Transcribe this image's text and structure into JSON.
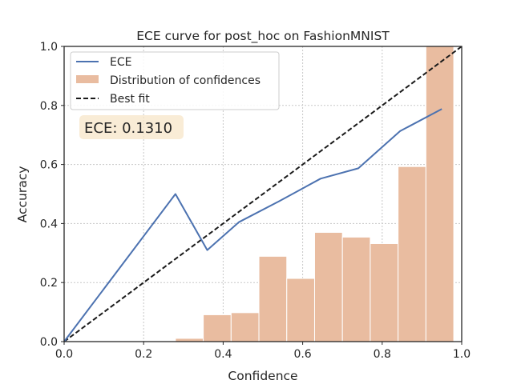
{
  "chart_data": {
    "type": "bar+line",
    "title": "ECE curve for post_hoc on FashionMNIST",
    "xlabel": "Confidence",
    "ylabel": "Accuracy",
    "xlim": [
      0,
      1
    ],
    "ylim": [
      0,
      1
    ],
    "xticks": [
      "0.0",
      "0.2",
      "0.4",
      "0.6",
      "0.8",
      "1.0"
    ],
    "yticks": [
      "0.0",
      "0.2",
      "0.4",
      "0.6",
      "0.8",
      "1.0"
    ],
    "grid": true,
    "legend_position": "upper-left",
    "legend": [
      "ECE",
      "Distribution of confidences",
      "Best fit"
    ],
    "annotation": "ECE: 0.1310",
    "ece_line": {
      "name": "ECE",
      "color": "#4c72b0",
      "x": [
        0.0,
        0.28,
        0.36,
        0.44,
        0.54,
        0.645,
        0.74,
        0.845,
        0.95
      ],
      "y": [
        0.0,
        0.5,
        0.31,
        0.405,
        0.475,
        0.552,
        0.587,
        0.713,
        0.788
      ]
    },
    "histogram": {
      "name": "Distribution of confidences",
      "color": "#e9bca0",
      "bins": [
        {
          "x0": 0.28,
          "x1": 0.35,
          "value": 0.011
        },
        {
          "x0": 0.35,
          "x1": 0.42,
          "value": 0.091
        },
        {
          "x0": 0.42,
          "x1": 0.49,
          "value": 0.098
        },
        {
          "x0": 0.49,
          "x1": 0.56,
          "value": 0.289
        },
        {
          "x0": 0.56,
          "x1": 0.63,
          "value": 0.214
        },
        {
          "x0": 0.63,
          "x1": 0.7,
          "value": 0.37
        },
        {
          "x0": 0.7,
          "x1": 0.77,
          "value": 0.354
        },
        {
          "x0": 0.77,
          "x1": 0.84,
          "value": 0.332
        },
        {
          "x0": 0.84,
          "x1": 0.91,
          "value": 0.593
        },
        {
          "x0": 0.91,
          "x1": 0.98,
          "value": 1.0
        }
      ]
    },
    "best_fit": {
      "name": "Best fit",
      "color": "#1a1a1a",
      "x": [
        0,
        1
      ],
      "y": [
        0,
        1
      ]
    }
  }
}
